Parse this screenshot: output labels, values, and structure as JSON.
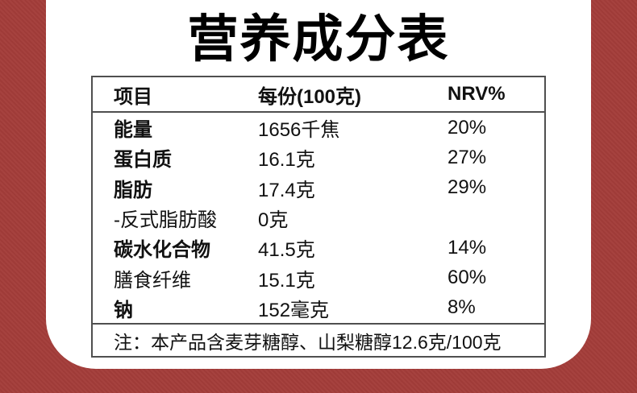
{
  "page": {
    "background_color": "#a43d3a",
    "panel_color": "#ffffff",
    "border_color": "#4f4f4f"
  },
  "title": "营养成分表",
  "table": {
    "header": {
      "item": "项目",
      "per_serving": "每份(100克)",
      "nrv": "NRV%"
    },
    "rows": [
      {
        "item": "能量",
        "value": "1656千焦",
        "nrv": "20%",
        "bold": true
      },
      {
        "item": "蛋白质",
        "value": "16.1克",
        "nrv": "27%",
        "bold": true
      },
      {
        "item": "脂肪",
        "value": "17.4克",
        "nrv": "29%",
        "bold": true
      },
      {
        "item": "-反式脂肪酸",
        "value": "0克",
        "nrv": "",
        "bold": false
      },
      {
        "item": "碳水化合物",
        "value": "41.5克",
        "nrv": "14%",
        "bold": true
      },
      {
        "item": "膳食纤维",
        "value": "15.1克",
        "nrv": "60%",
        "bold": false
      },
      {
        "item": "钠",
        "value": "152毫克",
        "nrv": "8%",
        "bold": true
      }
    ],
    "note": "注：本产品含麦芽糖醇、山梨糖醇12.6克/100克"
  }
}
